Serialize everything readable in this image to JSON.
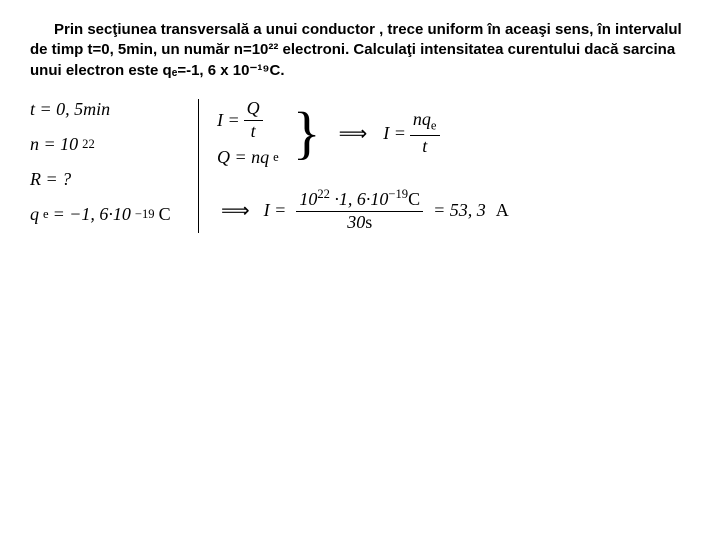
{
  "problem": "Prin secţiunea transversală a unui conductor , trece uniform în aceaşi sens, în intervalul de timp t=0, 5min, un număr n=10²² electroni. Calculaţi intensitatea curentului dacă sarcina unui electron este qₑ=-1, 6 x 10⁻¹⁹C.",
  "given": {
    "t": "t = 0, 5min",
    "n_lhs": "n = 10",
    "n_exp": "22",
    "R": "R = ?",
    "qe_var": "q",
    "qe_sub": "e",
    "qe_val": " = −1, 6·10",
    "qe_exp": "−19",
    "qe_unit": "C"
  },
  "formulas": {
    "I_eq": "I =",
    "Q_over_t_num": "Q",
    "Q_over_t_den": "t",
    "Q_eq": "Q = nq",
    "Q_eq_sub": "e",
    "arrow": "⟹",
    "I_eq2": "I =",
    "nqe_num_a": "nq",
    "nqe_num_sub": "e",
    "nqe_den": "t"
  },
  "solution": {
    "arrow": "⟹",
    "I_eq": "I =",
    "num_a": "10",
    "num_exp1": "22",
    "num_mid": " ·1, 6·10",
    "num_exp2": "−19",
    "num_unit": "C",
    "den_val": "30",
    "den_unit": "s",
    "result": " = 53, 3",
    "result_unit": "A"
  }
}
